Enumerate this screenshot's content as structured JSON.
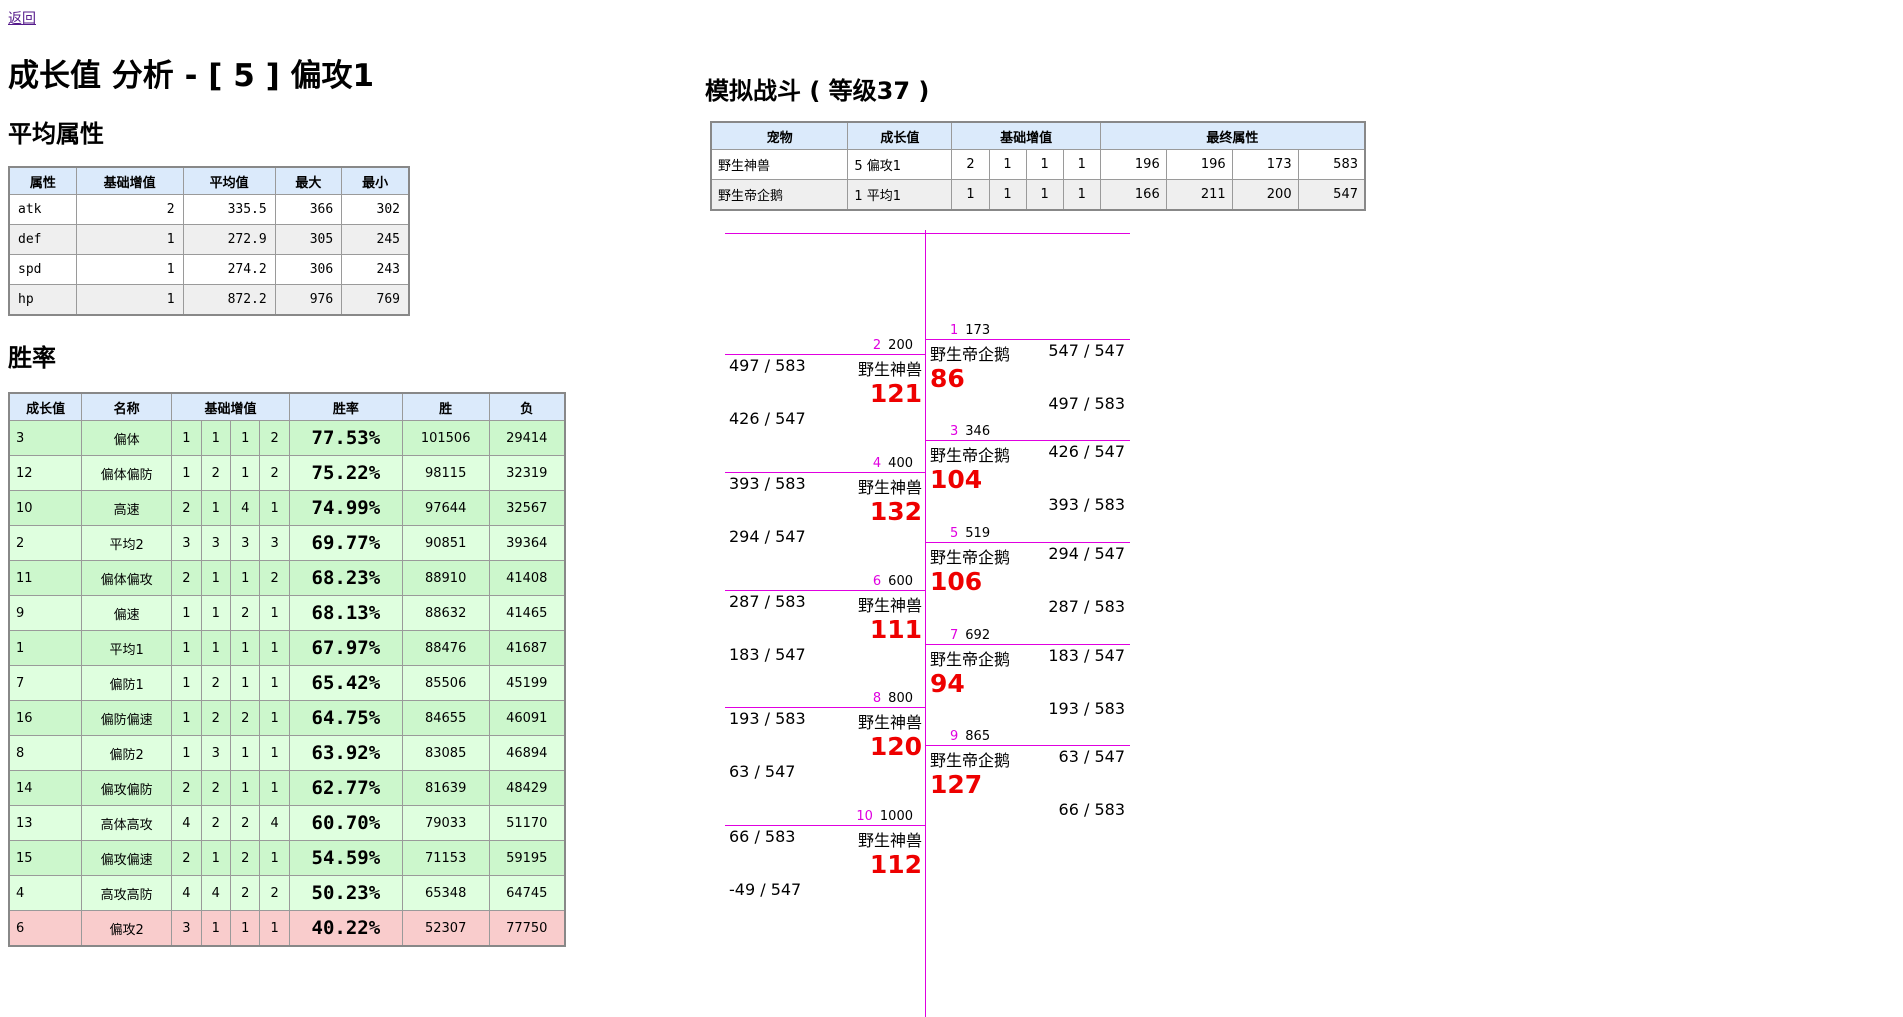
{
  "back_link": "返回",
  "page_title": "成长值 分析 - [ 5 ] 偏攻1",
  "average": {
    "heading": "平均属性",
    "columns": [
      "属性",
      "基础增值",
      "平均值",
      "最大",
      "最小"
    ],
    "rows": [
      {
        "attr": "atk",
        "base": "2",
        "avg": "335.5",
        "max": "366",
        "min": "302"
      },
      {
        "attr": "def",
        "base": "1",
        "avg": "272.9",
        "max": "305",
        "min": "245"
      },
      {
        "attr": "spd",
        "base": "1",
        "avg": "274.2",
        "max": "306",
        "min": "243"
      },
      {
        "attr": "hp",
        "base": "1",
        "avg": "872.2",
        "max": "976",
        "min": "769"
      }
    ]
  },
  "winrate": {
    "heading": "胜率",
    "columns": [
      "成长值",
      "名称",
      "基础增值",
      "胜率",
      "胜",
      "负"
    ],
    "rows": [
      {
        "id": "3",
        "name": "偏体",
        "b": [
          "1",
          "1",
          "1",
          "2"
        ],
        "rate": "77.53%",
        "win": "101506",
        "lose": "29414"
      },
      {
        "id": "12",
        "name": "偏体偏防",
        "b": [
          "1",
          "2",
          "1",
          "2"
        ],
        "rate": "75.22%",
        "win": "98115",
        "lose": "32319"
      },
      {
        "id": "10",
        "name": "高速",
        "b": [
          "2",
          "1",
          "4",
          "1"
        ],
        "rate": "74.99%",
        "win": "97644",
        "lose": "32567"
      },
      {
        "id": "2",
        "name": "平均2",
        "b": [
          "3",
          "3",
          "3",
          "3"
        ],
        "rate": "69.77%",
        "win": "90851",
        "lose": "39364"
      },
      {
        "id": "11",
        "name": "偏体偏攻",
        "b": [
          "2",
          "1",
          "1",
          "2"
        ],
        "rate": "68.23%",
        "win": "88910",
        "lose": "41408"
      },
      {
        "id": "9",
        "name": "偏速",
        "b": [
          "1",
          "1",
          "2",
          "1"
        ],
        "rate": "68.13%",
        "win": "88632",
        "lose": "41465"
      },
      {
        "id": "1",
        "name": "平均1",
        "b": [
          "1",
          "1",
          "1",
          "1"
        ],
        "rate": "67.97%",
        "win": "88476",
        "lose": "41687"
      },
      {
        "id": "7",
        "name": "偏防1",
        "b": [
          "1",
          "2",
          "1",
          "1"
        ],
        "rate": "65.42%",
        "win": "85506",
        "lose": "45199"
      },
      {
        "id": "16",
        "name": "偏防偏速",
        "b": [
          "1",
          "2",
          "2",
          "1"
        ],
        "rate": "64.75%",
        "win": "84655",
        "lose": "46091"
      },
      {
        "id": "8",
        "name": "偏防2",
        "b": [
          "1",
          "3",
          "1",
          "1"
        ],
        "rate": "63.92%",
        "win": "83085",
        "lose": "46894"
      },
      {
        "id": "14",
        "name": "偏攻偏防",
        "b": [
          "2",
          "2",
          "1",
          "1"
        ],
        "rate": "62.77%",
        "win": "81639",
        "lose": "48429"
      },
      {
        "id": "13",
        "name": "高体高攻",
        "b": [
          "4",
          "2",
          "2",
          "4"
        ],
        "rate": "60.70%",
        "win": "79033",
        "lose": "51170"
      },
      {
        "id": "15",
        "name": "偏攻偏速",
        "b": [
          "2",
          "1",
          "2",
          "1"
        ],
        "rate": "54.59%",
        "win": "71153",
        "lose": "59195"
      },
      {
        "id": "4",
        "name": "高攻高防",
        "b": [
          "4",
          "4",
          "2",
          "2"
        ],
        "rate": "50.23%",
        "win": "65348",
        "lose": "64745"
      },
      {
        "id": "6",
        "name": "偏攻2",
        "b": [
          "3",
          "1",
          "1",
          "1"
        ],
        "rate": "40.22%",
        "win": "52307",
        "lose": "77750"
      }
    ]
  },
  "simulation": {
    "heading": "模拟战斗 ( 等级37 )",
    "columns": [
      "宠物",
      "成长值",
      "基础增值",
      "最终属性"
    ],
    "rows": [
      {
        "pet": "野生神兽",
        "growth": "5 偏攻1",
        "b": [
          "2",
          "1",
          "1",
          "1"
        ],
        "final": [
          "196",
          "196",
          "173",
          "583"
        ]
      },
      {
        "pet": "野生帝企鹅",
        "growth": "1 平均1",
        "b": [
          "1",
          "1",
          "1",
          "1"
        ],
        "final": [
          "166",
          "211",
          "200",
          "547"
        ]
      }
    ]
  },
  "battle": {
    "left_events": [
      {
        "n": "2",
        "t": "200",
        "name": "野生神兽",
        "dmg": "121",
        "hp1": "497 / 583",
        "hp2": "426 / 547"
      },
      {
        "n": "4",
        "t": "400",
        "name": "野生神兽",
        "dmg": "132",
        "hp1": "393 / 583",
        "hp2": "294 / 547"
      },
      {
        "n": "6",
        "t": "600",
        "name": "野生神兽",
        "dmg": "111",
        "hp1": "287 / 583",
        "hp2": "183 / 547"
      },
      {
        "n": "8",
        "t": "800",
        "name": "野生神兽",
        "dmg": "120",
        "hp1": "193 / 583",
        "hp2": "63 / 547"
      },
      {
        "n": "10",
        "t": "1000",
        "name": "野生神兽",
        "dmg": "112",
        "hp1": "66 / 583",
        "hp2": "-49 / 547"
      }
    ],
    "right_events": [
      {
        "n": "1",
        "t": "173",
        "name": "野生帝企鹅",
        "dmg": "86",
        "hp1": "547 / 547",
        "hp2": "497 / 583"
      },
      {
        "n": "3",
        "t": "346",
        "name": "野生帝企鹅",
        "dmg": "104",
        "hp1": "426 / 547",
        "hp2": "393 / 583"
      },
      {
        "n": "5",
        "t": "519",
        "name": "野生帝企鹅",
        "dmg": "106",
        "hp1": "294 / 547",
        "hp2": "287 / 583"
      },
      {
        "n": "7",
        "t": "692",
        "name": "野生帝企鹅",
        "dmg": "94",
        "hp1": "183 / 547",
        "hp2": "193 / 583"
      },
      {
        "n": "9",
        "t": "865",
        "name": "野生帝企鹅",
        "dmg": "127",
        "hp1": "63 / 547",
        "hp2": "66 / 583"
      }
    ]
  },
  "colors": {
    "header_bg": "#dbeafb",
    "win_green": "#ccf7cc",
    "win_green_light": "#dfffdf",
    "lose_red": "#f9cccc",
    "timeline": "#e000e0",
    "damage": "#ee0000"
  }
}
